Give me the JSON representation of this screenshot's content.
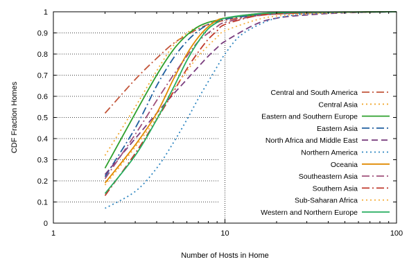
{
  "chart_data": {
    "type": "line",
    "title": "",
    "xlabel": "Number of Hosts in Home",
    "ylabel": "CDF Fraction Homes",
    "x_scale": "log",
    "xlim": [
      1,
      100
    ],
    "ylim": [
      0,
      1
    ],
    "x_ticks": [
      "1",
      "10",
      "100"
    ],
    "y_ticks": [
      "0",
      "0.1",
      "0.2",
      "0.3",
      "0.4",
      "0.5",
      "0.6",
      "0.7",
      "0.8",
      "0.9",
      "1"
    ],
    "grid": "dotted",
    "legend_position": "right-center",
    "series": [
      {
        "name": "Central and South America",
        "color": "#c2553a",
        "dash": "long-dash-dot",
        "x": [
          2,
          3,
          4,
          5,
          6,
          7,
          8,
          9,
          10,
          15,
          20,
          30,
          50,
          100
        ],
        "y": [
          0.52,
          0.68,
          0.78,
          0.85,
          0.89,
          0.92,
          0.94,
          0.95,
          0.96,
          0.98,
          0.99,
          0.995,
          0.998,
          1.0
        ]
      },
      {
        "name": "Central Asia",
        "color": "#f0a830",
        "dash": "dots",
        "x": [
          2,
          3,
          4,
          5,
          6,
          7,
          8,
          9,
          10,
          15,
          20,
          30,
          50,
          100
        ],
        "y": [
          0.32,
          0.55,
          0.72,
          0.84,
          0.9,
          0.93,
          0.95,
          0.96,
          0.97,
          0.985,
          0.99,
          0.995,
          0.998,
          1.0
        ]
      },
      {
        "name": "Eastern and Southern Europe",
        "color": "#2ea02c",
        "dash": "solid",
        "x": [
          2,
          3,
          4,
          5,
          6,
          7,
          8,
          9,
          10,
          15,
          20,
          30,
          50,
          100
        ],
        "y": [
          0.26,
          0.52,
          0.7,
          0.82,
          0.89,
          0.93,
          0.95,
          0.96,
          0.97,
          0.985,
          0.99,
          0.995,
          0.998,
          1.0
        ]
      },
      {
        "name": "Eastern Asia",
        "color": "#1f5f9f",
        "dash": "long-dash-dot",
        "x": [
          2,
          3,
          4,
          5,
          6,
          7,
          8,
          9,
          10,
          15,
          20,
          30,
          50,
          100
        ],
        "y": [
          0.22,
          0.45,
          0.65,
          0.78,
          0.86,
          0.91,
          0.94,
          0.955,
          0.965,
          0.985,
          0.99,
          0.995,
          0.998,
          1.0
        ]
      },
      {
        "name": "North Africa and Middle East",
        "color": "#7a3e7e",
        "dash": "dashed",
        "x": [
          2,
          3,
          4,
          5,
          6,
          7,
          8,
          9,
          10,
          15,
          20,
          30,
          50,
          100
        ],
        "y": [
          0.23,
          0.4,
          0.52,
          0.61,
          0.68,
          0.74,
          0.79,
          0.83,
          0.86,
          0.94,
          0.97,
          0.985,
          0.995,
          1.0
        ]
      },
      {
        "name": "Northern America",
        "color": "#2e86c1",
        "dash": "dots",
        "x": [
          2,
          3,
          4,
          5,
          6,
          7,
          8,
          9,
          10,
          12,
          15,
          20,
          30,
          50,
          100
        ],
        "y": [
          0.07,
          0.15,
          0.26,
          0.38,
          0.49,
          0.59,
          0.67,
          0.74,
          0.8,
          0.88,
          0.93,
          0.97,
          0.99,
          0.997,
          1.0
        ]
      },
      {
        "name": "Oceania",
        "color": "#e08a00",
        "dash": "solid",
        "x": [
          2,
          3,
          4,
          5,
          6,
          7,
          8,
          9,
          10,
          15,
          20,
          30,
          50,
          100
        ],
        "y": [
          0.19,
          0.37,
          0.52,
          0.68,
          0.8,
          0.88,
          0.93,
          0.96,
          0.97,
          0.99,
          0.995,
          0.998,
          0.999,
          1.0
        ]
      },
      {
        "name": "Southeastern Asia",
        "color": "#a0507a",
        "dash": "long-dash-dot",
        "x": [
          2,
          3,
          4,
          5,
          6,
          7,
          8,
          9,
          10,
          15,
          20,
          30,
          50,
          100
        ],
        "y": [
          0.21,
          0.42,
          0.58,
          0.7,
          0.79,
          0.86,
          0.9,
          0.93,
          0.95,
          0.98,
          0.99,
          0.995,
          0.998,
          1.0
        ]
      },
      {
        "name": "Southern Asia",
        "color": "#c0392b",
        "dash": "long-dash-dot",
        "x": [
          2,
          3,
          4,
          5,
          6,
          7,
          8,
          9,
          10,
          15,
          20,
          30,
          50,
          100
        ],
        "y": [
          0.13,
          0.33,
          0.49,
          0.62,
          0.73,
          0.81,
          0.87,
          0.91,
          0.94,
          0.98,
          0.99,
          0.995,
          0.998,
          1.0
        ]
      },
      {
        "name": "Sub-Saharan Africa",
        "color": "#f5b041",
        "dash": "dots",
        "x": [
          2,
          3,
          4,
          5,
          6,
          7,
          8,
          9,
          10,
          15,
          20,
          30,
          50,
          100
        ],
        "y": [
          0.18,
          0.36,
          0.5,
          0.63,
          0.72,
          0.79,
          0.84,
          0.88,
          0.91,
          0.96,
          0.98,
          0.99,
          0.997,
          1.0
        ]
      },
      {
        "name": "Western and Northern Europe",
        "color": "#27ae60",
        "dash": "solid",
        "x": [
          2,
          3,
          4,
          5,
          6,
          7,
          8,
          9,
          10,
          15,
          20,
          30,
          50,
          100
        ],
        "y": [
          0.14,
          0.32,
          0.49,
          0.64,
          0.77,
          0.86,
          0.92,
          0.95,
          0.97,
          0.99,
          0.995,
          0.998,
          0.999,
          1.0
        ]
      }
    ]
  }
}
